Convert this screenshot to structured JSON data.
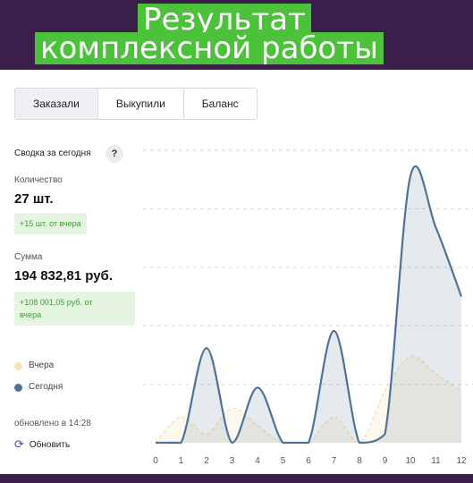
{
  "banner": {
    "line1": "Результат",
    "line2": "комплексной работы"
  },
  "tabs": [
    {
      "label": "Заказали",
      "active": true
    },
    {
      "label": "Выкупили",
      "active": false
    },
    {
      "label": "Баланс",
      "active": false
    }
  ],
  "summary": {
    "title": "Сводка за сегодня",
    "help_icon": "question-icon",
    "quantity_label": "Количество",
    "quantity_value": "27 шт.",
    "quantity_delta": "+15 шт. от вчера",
    "sum_label": "Сумма",
    "sum_value": "194 832,81 руб.",
    "sum_delta_line1": "+108 001,05 руб. от",
    "sum_delta_line2": "вчера"
  },
  "legend": {
    "yesterday": "Вчера",
    "today": "Сегодня",
    "yesterday_color": "#f5e3b8",
    "today_color": "#4f7296"
  },
  "footer": {
    "updated": "обновлено в 14:28",
    "refresh": "Обновить",
    "refresh_icon": "refresh-icon"
  },
  "chart_data": {
    "type": "area",
    "x": [
      0,
      1,
      2,
      3,
      4,
      5,
      6,
      7,
      8,
      9,
      10,
      11,
      12
    ],
    "tick_labels": [
      "0",
      "1",
      "2",
      "3",
      "4",
      "5",
      "6",
      "7",
      "8",
      "9",
      "10",
      "11",
      "12"
    ],
    "series": [
      {
        "name": "Сегодня",
        "values": [
          0,
          0,
          5.5,
          0,
          3.2,
          0,
          0,
          6.5,
          0,
          0.5,
          15.5,
          12.5,
          8.5
        ]
      },
      {
        "name": "Вчера",
        "values": [
          0,
          1.5,
          0.5,
          2,
          1,
          0,
          0,
          1.5,
          0,
          3,
          5,
          4,
          3
        ]
      }
    ],
    "gridlines": 5,
    "grid": true,
    "colors": {
      "today": "#4f7296",
      "yesterday": "#f5e3b8"
    }
  }
}
